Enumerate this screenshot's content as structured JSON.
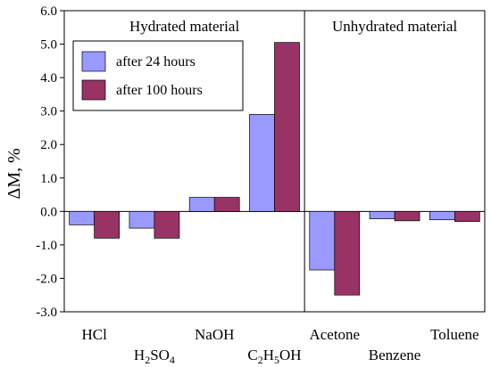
{
  "chart_data": {
    "type": "bar",
    "ylabel": "ΔM, %",
    "ylim": [
      -3.0,
      6.0
    ],
    "yticks": [
      6.0,
      5.0,
      4.0,
      3.0,
      2.0,
      1.0,
      0.0,
      -1.0,
      -2.0,
      -3.0
    ],
    "ytick_labels": [
      "6.0",
      "5.0",
      "4.0",
      "3.0",
      "2.0",
      "1.0",
      "0.0",
      "-1.0",
      "-2.0",
      "-3.0"
    ],
    "grid": false,
    "legend_position": "top-left",
    "categories": [
      {
        "base": "HCl",
        "sub": [],
        "row": 0
      },
      {
        "base": "H",
        "sub": [
          {
            "t": "2",
            "sub": true
          },
          {
            "t": "SO",
            "sub": false
          },
          {
            "t": "4",
            "sub": true
          }
        ],
        "row": 1
      },
      {
        "base": "NaOH",
        "sub": [],
        "row": 0
      },
      {
        "base": "C",
        "sub": [
          {
            "t": "2",
            "sub": true
          },
          {
            "t": "H",
            "sub": false
          },
          {
            "t": "5",
            "sub": true
          },
          {
            "t": "OH",
            "sub": false
          }
        ],
        "row": 1
      },
      {
        "base": "Acetone",
        "sub": [],
        "row": 0
      },
      {
        "base": "Benzene",
        "sub": [],
        "row": 1
      },
      {
        "base": "Toluene",
        "sub": [],
        "row": 0
      }
    ],
    "series": [
      {
        "name": "after 24 hours",
        "color": "#9999ff",
        "values": [
          -0.4,
          -0.5,
          0.42,
          2.9,
          -1.75,
          -0.22,
          -0.25
        ]
      },
      {
        "name": "after 100 hours",
        "color": "#993366",
        "values": [
          -0.8,
          -0.8,
          0.42,
          5.05,
          -2.5,
          -0.28,
          -0.3
        ]
      }
    ],
    "regions": [
      {
        "label": "Hydrated material",
        "categories": [
          0,
          1,
          2,
          3
        ]
      },
      {
        "label": "Unhydrated material",
        "categories": [
          4,
          5,
          6
        ]
      }
    ]
  }
}
